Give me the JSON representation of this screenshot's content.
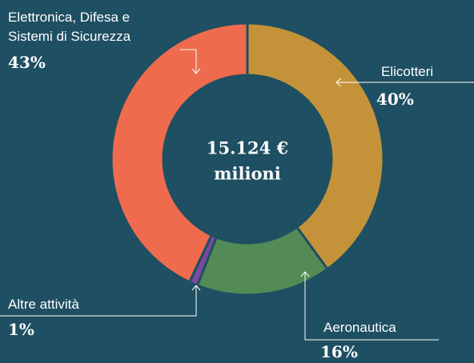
{
  "chart_data": {
    "type": "donut",
    "categories": [
      "Elicotteri",
      "Aeronautica",
      "Altre attività",
      "Elettronica, Difesa e Sistemi di Sicurezza"
    ],
    "values": [
      40,
      16,
      1,
      43
    ],
    "value_labels": [
      "40%",
      "16%",
      "1%",
      "43%"
    ],
    "colors": [
      "#c49339",
      "#548a55",
      "#7b4a9c",
      "#ee6b4d"
    ],
    "center_text": "15.124 €",
    "center_subtext": "milioni"
  }
}
